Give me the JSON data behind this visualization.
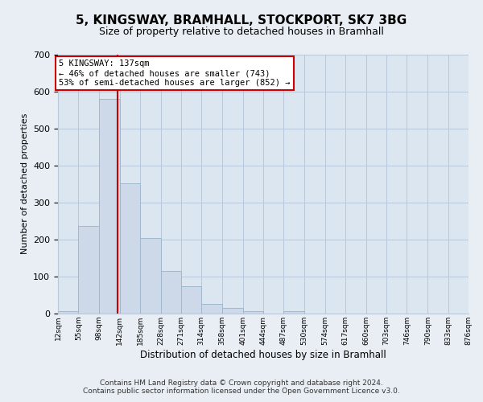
{
  "title": "5, KINGSWAY, BRAMHALL, STOCKPORT, SK7 3BG",
  "subtitle": "Size of property relative to detached houses in Bramhall",
  "xlabel": "Distribution of detached houses by size in Bramhall",
  "ylabel": "Number of detached properties",
  "bar_edges": [
    12,
    55,
    98,
    142,
    185,
    228,
    271,
    314,
    358,
    401,
    444,
    487,
    530,
    574,
    617,
    660,
    703,
    746,
    790,
    833,
    876
  ],
  "bar_heights": [
    7,
    236,
    580,
    352,
    203,
    116,
    73,
    27,
    15,
    7,
    0,
    7,
    0,
    0,
    0,
    0,
    0,
    0,
    0,
    0
  ],
  "bar_color": "#cdd9e8",
  "bar_edge_color": "#a0b8cc",
  "property_line_x": 137,
  "property_line_color": "#cc0000",
  "ylim": [
    0,
    700
  ],
  "yticks": [
    0,
    100,
    200,
    300,
    400,
    500,
    600,
    700
  ],
  "annotation_title": "5 KINGSWAY: 137sqm",
  "annotation_line1": "← 46% of detached houses are smaller (743)",
  "annotation_line2": "53% of semi-detached houses are larger (852) →",
  "annotation_box_color": "#ffffff",
  "annotation_border_color": "#cc0000",
  "footer1": "Contains HM Land Registry data © Crown copyright and database right 2024.",
  "footer2": "Contains public sector information licensed under the Open Government Licence v3.0.",
  "background_color": "#e8eef4",
  "plot_bg_color": "#dce6f0",
  "grid_color": "#b8c8d8",
  "title_fontsize": 11,
  "subtitle_fontsize": 9
}
